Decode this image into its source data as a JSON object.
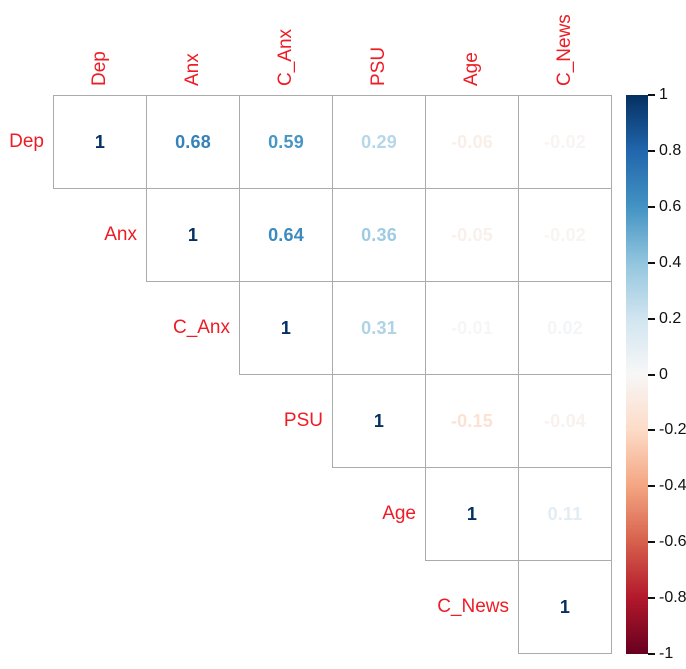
{
  "figure": {
    "background": "#ffffff",
    "variable_label_color": "#ee1c25",
    "grid_line_color": "#ababab",
    "tick_label_color": "#111111"
  },
  "chart_data": {
    "type": "heatmap",
    "subtype": "upper-triangle correlation matrix, corrplot number style (text colored by value)",
    "variables": [
      "Dep",
      "Anx",
      "C_Anx",
      "PSU",
      "Age",
      "C_News"
    ],
    "matrix_upper_triangle": [
      [
        1,
        0.68,
        0.59,
        0.29,
        -0.06,
        -0.02
      ],
      [
        null,
        1,
        0.64,
        0.36,
        -0.05,
        -0.02
      ],
      [
        null,
        null,
        1,
        0.31,
        -0.01,
        0.02
      ],
      [
        null,
        null,
        null,
        1,
        -0.15,
        -0.04
      ],
      [
        null,
        null,
        null,
        null,
        1,
        0.11
      ],
      [
        null,
        null,
        null,
        null,
        null,
        1
      ]
    ],
    "value_range": [
      -1,
      1
    ],
    "grid": true,
    "legend_position": "right",
    "colorbar": {
      "tick_labels": [
        "1",
        "0.8",
        "0.6",
        "0.4",
        "0.2",
        "0",
        "-0.2",
        "-0.4",
        "-0.6",
        "-0.8",
        "-1"
      ],
      "top_value": 1,
      "bottom_value": -1,
      "palette_stops": [
        {
          "value": 1.0,
          "color": "#053061"
        },
        {
          "value": 0.8,
          "color": "#2166ac"
        },
        {
          "value": 0.6,
          "color": "#4393c3"
        },
        {
          "value": 0.4,
          "color": "#92c5de"
        },
        {
          "value": 0.2,
          "color": "#d1e5f0"
        },
        {
          "value": 0.0,
          "color": "#f7f7f7"
        },
        {
          "value": -0.2,
          "color": "#fddbc7"
        },
        {
          "value": -0.4,
          "color": "#f4a582"
        },
        {
          "value": -0.6,
          "color": "#d6604d"
        },
        {
          "value": -0.8,
          "color": "#b2182b"
        },
        {
          "value": -1.0,
          "color": "#67001f"
        }
      ]
    }
  }
}
